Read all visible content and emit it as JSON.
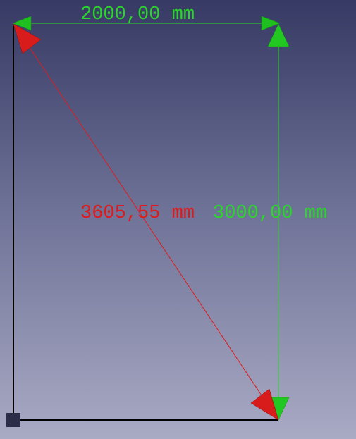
{
  "view": {
    "background_top": "#363a64",
    "background_bottom": "#a9aac4"
  },
  "dimensions": {
    "width_label": "2000,00 mm",
    "diagonal_label": "3605,55 mm",
    "height_label": "3000,00 mm"
  },
  "colors": {
    "horizontal_measure": "#2bd62b",
    "vertical_measure": "#2bd62b",
    "diagonal_measure": "#e01a1a",
    "geometry_edges": "#000000",
    "origin_marker": "#2b2d48"
  },
  "icons": {
    "arrowhead": "triangle-arrowhead-icon",
    "origin": "origin-square-icon"
  }
}
